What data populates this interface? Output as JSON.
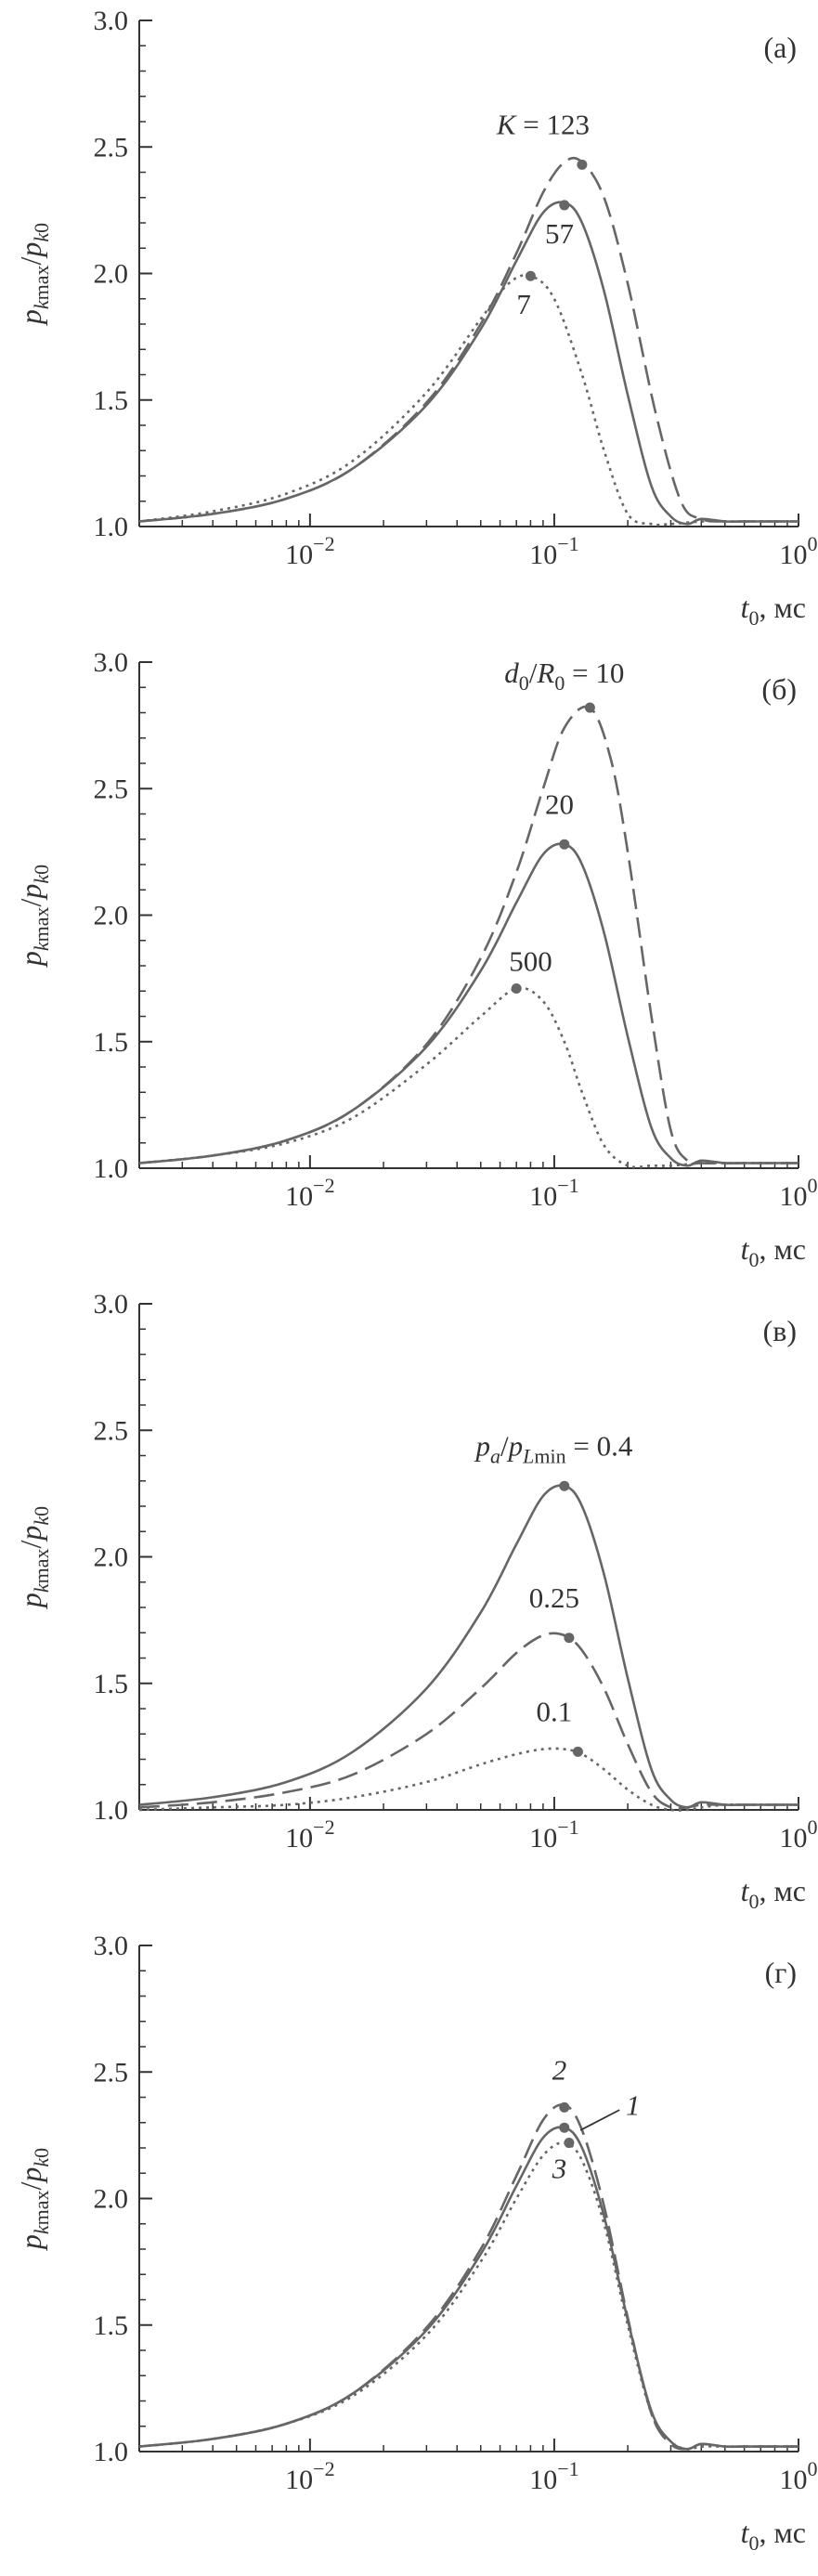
{
  "colors": {
    "curve": "#666666",
    "axis": "#333333",
    "text": "#333333",
    "background": "#ffffff"
  },
  "chart_data": [
    {
      "type": "line",
      "panel_label": "(а)",
      "xscale": "log",
      "xlim": [
        0.002,
        1
      ],
      "ylim": [
        1.0,
        3.0
      ],
      "xticks": [
        0.01,
        0.1,
        1
      ],
      "xtick_labels": [
        {
          "base": "10",
          "exp": "−2"
        },
        {
          "base": "10",
          "exp": "−1"
        },
        {
          "base": "10",
          "exp": "0"
        }
      ],
      "yticks": [
        1.0,
        1.5,
        2.0,
        2.5,
        3.0
      ],
      "ytick_labels": [
        "1.0",
        "1.5",
        "2.0",
        "2.5",
        "3.0"
      ],
      "ylabel": {
        "p1": "p",
        "s1": "k",
        "s1b": "max",
        "slash": "/",
        "p2": "p",
        "s2": "k",
        "s2b": "0"
      },
      "xlabel": {
        "t": "t",
        "sub": "0",
        "unit": ", мс"
      },
      "grid": false,
      "series": [
        {
          "key": "K=123",
          "style": "dashed",
          "x": [
            0.002,
            0.004,
            0.008,
            0.015,
            0.03,
            0.05,
            0.07,
            0.09,
            0.11,
            0.13,
            0.16,
            0.2,
            0.26,
            0.33,
            0.4,
            0.5,
            0.6,
            0.8,
            1.0
          ],
          "y": [
            1.02,
            1.05,
            1.11,
            1.23,
            1.49,
            1.8,
            2.08,
            2.32,
            2.44,
            2.44,
            2.3,
            1.96,
            1.45,
            1.1,
            1.03,
            1.02,
            1.02,
            1.02,
            1.02
          ],
          "marker": [
            0.13,
            2.43
          ]
        },
        {
          "key": "K=57",
          "style": "solid",
          "x": [
            0.002,
            0.004,
            0.008,
            0.015,
            0.03,
            0.05,
            0.07,
            0.09,
            0.11,
            0.13,
            0.16,
            0.2,
            0.25,
            0.3,
            0.35,
            0.4,
            0.5,
            0.6,
            0.8,
            1.0
          ],
          "y": [
            1.02,
            1.05,
            1.11,
            1.23,
            1.48,
            1.78,
            2.05,
            2.24,
            2.28,
            2.2,
            1.93,
            1.52,
            1.16,
            1.04,
            1.01,
            1.03,
            1.02,
            1.02,
            1.02,
            1.02
          ],
          "marker": [
            0.11,
            2.27
          ]
        },
        {
          "key": "K=7",
          "style": "dotted",
          "x": [
            0.002,
            0.004,
            0.008,
            0.015,
            0.03,
            0.05,
            0.065,
            0.08,
            0.1,
            0.13,
            0.16,
            0.2,
            0.25,
            0.3,
            0.4,
            0.5,
            0.6,
            0.8,
            1.0
          ],
          "y": [
            1.02,
            1.06,
            1.13,
            1.26,
            1.53,
            1.82,
            1.96,
            1.99,
            1.9,
            1.6,
            1.3,
            1.05,
            1.01,
            1.01,
            1.02,
            1.02,
            1.02,
            1.02,
            1.02
          ],
          "marker": [
            0.08,
            1.99
          ]
        }
      ],
      "annotations": [
        {
          "italic": "K",
          "text": " = 123",
          "x": 0.09,
          "y": 2.55,
          "anchor": "middle"
        },
        {
          "text": "57",
          "x": 0.105,
          "y": 2.12,
          "anchor": "middle"
        },
        {
          "text": "7",
          "x": 0.075,
          "y": 1.84,
          "anchor": "middle"
        }
      ]
    },
    {
      "type": "line",
      "panel_label": "(б)",
      "xscale": "log",
      "xlim": [
        0.002,
        1
      ],
      "ylim": [
        1.0,
        3.0
      ],
      "xticks": [
        0.01,
        0.1,
        1
      ],
      "xtick_labels": [
        {
          "base": "10",
          "exp": "−2"
        },
        {
          "base": "10",
          "exp": "−1"
        },
        {
          "base": "10",
          "exp": "0"
        }
      ],
      "yticks": [
        1.0,
        1.5,
        2.0,
        2.5,
        3.0
      ],
      "ytick_labels": [
        "1.0",
        "1.5",
        "2.0",
        "2.5",
        "3.0"
      ],
      "ylabel": {
        "p1": "p",
        "s1": "k",
        "s1b": "max",
        "slash": "/",
        "p2": "p",
        "s2": "k",
        "s2b": "0"
      },
      "xlabel": {
        "t": "t",
        "sub": "0",
        "unit": ", мс"
      },
      "grid": false,
      "series": [
        {
          "key": "d0/R0=10",
          "style": "dashed",
          "x": [
            0.002,
            0.004,
            0.008,
            0.015,
            0.03,
            0.05,
            0.07,
            0.09,
            0.11,
            0.14,
            0.17,
            0.2,
            0.25,
            0.3,
            0.35,
            0.4,
            0.5,
            0.6,
            0.8,
            1.0
          ],
          "y": [
            1.02,
            1.05,
            1.11,
            1.23,
            1.49,
            1.83,
            2.17,
            2.5,
            2.74,
            2.82,
            2.62,
            2.25,
            1.6,
            1.15,
            1.03,
            1.02,
            1.02,
            1.02,
            1.02,
            1.02
          ],
          "marker": [
            0.14,
            2.82
          ]
        },
        {
          "key": "d0/R0=20",
          "style": "solid",
          "x": [
            0.002,
            0.004,
            0.008,
            0.015,
            0.03,
            0.05,
            0.07,
            0.09,
            0.11,
            0.13,
            0.16,
            0.2,
            0.25,
            0.3,
            0.35,
            0.4,
            0.5,
            0.6,
            0.8,
            1.0
          ],
          "y": [
            1.02,
            1.05,
            1.11,
            1.23,
            1.48,
            1.78,
            2.05,
            2.24,
            2.28,
            2.2,
            1.93,
            1.52,
            1.16,
            1.04,
            1.01,
            1.03,
            1.02,
            1.02,
            1.02,
            1.02
          ],
          "marker": [
            0.11,
            2.28
          ]
        },
        {
          "key": "d0/R0=500",
          "style": "dotted",
          "x": [
            0.002,
            0.004,
            0.008,
            0.015,
            0.03,
            0.05,
            0.07,
            0.09,
            0.11,
            0.13,
            0.16,
            0.2,
            0.25,
            0.3,
            0.4,
            0.5,
            0.6,
            0.8,
            1.0
          ],
          "y": [
            1.02,
            1.05,
            1.1,
            1.2,
            1.41,
            1.6,
            1.71,
            1.66,
            1.5,
            1.3,
            1.09,
            1.01,
            1.01,
            1.01,
            1.02,
            1.02,
            1.02,
            1.02,
            1.02
          ],
          "marker": [
            0.07,
            1.71
          ]
        }
      ],
      "annotations": [
        {
          "html": "d0R0",
          "x": 0.11,
          "y": 2.92,
          "anchor": "middle",
          "text": " = 10",
          "italic": "d",
          "sub": "0",
          "slash": "/",
          "italic2": "R",
          "sub2": "0"
        },
        {
          "text": "20",
          "x": 0.105,
          "y": 2.4,
          "anchor": "middle"
        },
        {
          "text": "500",
          "x": 0.08,
          "y": 1.78,
          "anchor": "middle"
        }
      ]
    },
    {
      "type": "line",
      "panel_label": "(в)",
      "xscale": "log",
      "xlim": [
        0.002,
        1
      ],
      "ylim": [
        1.0,
        3.0
      ],
      "xticks": [
        0.01,
        0.1,
        1
      ],
      "xtick_labels": [
        {
          "base": "10",
          "exp": "−2"
        },
        {
          "base": "10",
          "exp": "−1"
        },
        {
          "base": "10",
          "exp": "0"
        }
      ],
      "yticks": [
        1.0,
        1.5,
        2.0,
        2.5,
        3.0
      ],
      "ytick_labels": [
        "1.0",
        "1.5",
        "2.0",
        "2.5",
        "3.0"
      ],
      "ylabel": {
        "p1": "p",
        "s1": "k",
        "s1b": "max",
        "slash": "/",
        "p2": "p",
        "s2": "k",
        "s2b": "0"
      },
      "xlabel": {
        "t": "t",
        "sub": "0",
        "unit": ", мс"
      },
      "grid": false,
      "series": [
        {
          "key": "pa/pLmin=0.4",
          "style": "solid",
          "x": [
            0.002,
            0.004,
            0.008,
            0.015,
            0.03,
            0.05,
            0.07,
            0.09,
            0.11,
            0.13,
            0.16,
            0.2,
            0.25,
            0.3,
            0.35,
            0.4,
            0.5,
            0.6,
            0.8,
            1.0
          ],
          "y": [
            1.02,
            1.05,
            1.11,
            1.23,
            1.48,
            1.78,
            2.05,
            2.24,
            2.28,
            2.2,
            1.93,
            1.52,
            1.16,
            1.04,
            1.01,
            1.03,
            1.02,
            1.02,
            1.02,
            1.02
          ],
          "marker": [
            0.11,
            2.28
          ]
        },
        {
          "key": "pa/pLmin=0.25",
          "style": "dashed",
          "x": [
            0.002,
            0.004,
            0.008,
            0.015,
            0.03,
            0.05,
            0.07,
            0.09,
            0.11,
            0.13,
            0.16,
            0.2,
            0.25,
            0.3,
            0.35,
            0.4,
            0.5,
            0.6,
            0.8,
            1.0
          ],
          "y": [
            1.01,
            1.03,
            1.07,
            1.14,
            1.3,
            1.48,
            1.62,
            1.69,
            1.69,
            1.63,
            1.48,
            1.26,
            1.07,
            1.01,
            1.01,
            1.02,
            1.02,
            1.02,
            1.02,
            1.02
          ],
          "marker": [
            0.115,
            1.68
          ]
        },
        {
          "key": "pa/pLmin=0.1",
          "style": "dotted",
          "x": [
            0.002,
            0.004,
            0.008,
            0.015,
            0.03,
            0.05,
            0.07,
            0.09,
            0.11,
            0.13,
            0.16,
            0.2,
            0.25,
            0.3,
            0.35,
            0.4,
            0.5,
            0.6,
            0.8,
            1.0
          ],
          "y": [
            1.0,
            1.01,
            1.02,
            1.05,
            1.11,
            1.18,
            1.22,
            1.24,
            1.24,
            1.22,
            1.16,
            1.08,
            1.02,
            1.0,
            1.0,
            1.01,
            1.02,
            1.02,
            1.02,
            1.02
          ],
          "marker": [
            0.125,
            1.23
          ]
        }
      ],
      "annotations": [
        {
          "text": " = 0.4",
          "x": 0.1,
          "y": 2.4,
          "anchor": "middle",
          "pa": true
        },
        {
          "text": "0.25",
          "x": 0.1,
          "y": 1.8,
          "anchor": "middle"
        },
        {
          "text": "0.1",
          "x": 0.1,
          "y": 1.35,
          "anchor": "middle"
        }
      ]
    },
    {
      "type": "line",
      "panel_label": "(г)",
      "xscale": "log",
      "xlim": [
        0.002,
        1
      ],
      "ylim": [
        1.0,
        3.0
      ],
      "xticks": [
        0.01,
        0.1,
        1
      ],
      "xtick_labels": [
        {
          "base": "10",
          "exp": "−2"
        },
        {
          "base": "10",
          "exp": "−1"
        },
        {
          "base": "10",
          "exp": "0"
        }
      ],
      "yticks": [
        1.0,
        1.5,
        2.0,
        2.5,
        3.0
      ],
      "ytick_labels": [
        "1.0",
        "1.5",
        "2.0",
        "2.5",
        "3.0"
      ],
      "ylabel": {
        "p1": "p",
        "s1": "k",
        "s1b": "max",
        "slash": "/",
        "p2": "p",
        "s2": "k",
        "s2b": "0"
      },
      "xlabel": {
        "t": "t",
        "sub": "0",
        "unit": ", мс"
      },
      "grid": false,
      "series": [
        {
          "key": "1",
          "style": "solid",
          "x": [
            0.002,
            0.004,
            0.008,
            0.015,
            0.03,
            0.05,
            0.07,
            0.09,
            0.11,
            0.13,
            0.16,
            0.2,
            0.25,
            0.3,
            0.35,
            0.4,
            0.5,
            0.6,
            0.8,
            1.0
          ],
          "y": [
            1.02,
            1.05,
            1.11,
            1.23,
            1.48,
            1.78,
            2.05,
            2.24,
            2.28,
            2.2,
            1.93,
            1.52,
            1.16,
            1.04,
            1.01,
            1.03,
            1.02,
            1.02,
            1.02,
            1.02
          ],
          "marker": [
            0.11,
            2.28
          ]
        },
        {
          "key": "2",
          "style": "dashed",
          "x": [
            0.002,
            0.004,
            0.008,
            0.015,
            0.03,
            0.05,
            0.07,
            0.09,
            0.11,
            0.13,
            0.16,
            0.2,
            0.25,
            0.3,
            0.35,
            0.4,
            0.5,
            0.6,
            0.8,
            1.0
          ],
          "y": [
            1.02,
            1.05,
            1.11,
            1.23,
            1.49,
            1.8,
            2.09,
            2.31,
            2.37,
            2.27,
            1.97,
            1.53,
            1.15,
            1.03,
            1.01,
            1.03,
            1.02,
            1.02,
            1.02,
            1.02
          ],
          "marker": [
            0.11,
            2.36
          ]
        },
        {
          "key": "3",
          "style": "dotted",
          "x": [
            0.002,
            0.004,
            0.008,
            0.015,
            0.03,
            0.05,
            0.07,
            0.09,
            0.11,
            0.13,
            0.16,
            0.2,
            0.25,
            0.3,
            0.35,
            0.4,
            0.5,
            0.6,
            0.8,
            1.0
          ],
          "y": [
            1.02,
            1.05,
            1.11,
            1.22,
            1.46,
            1.75,
            2.0,
            2.17,
            2.22,
            2.15,
            1.9,
            1.5,
            1.15,
            1.04,
            1.01,
            1.02,
            1.02,
            1.02,
            1.02,
            1.02
          ],
          "marker": [
            0.115,
            2.22
          ]
        }
      ],
      "annotations": [
        {
          "text": "2",
          "x": 0.105,
          "y": 2.47,
          "anchor": "middle",
          "italicAll": true
        },
        {
          "text": "1",
          "x": 0.21,
          "y": 2.33,
          "anchor": "middle",
          "italicAll": true,
          "leader": [
            0.185,
            2.35,
            0.128,
            2.27
          ]
        },
        {
          "text": "3",
          "x": 0.105,
          "y": 2.08,
          "anchor": "middle",
          "italicAll": true
        }
      ]
    }
  ]
}
